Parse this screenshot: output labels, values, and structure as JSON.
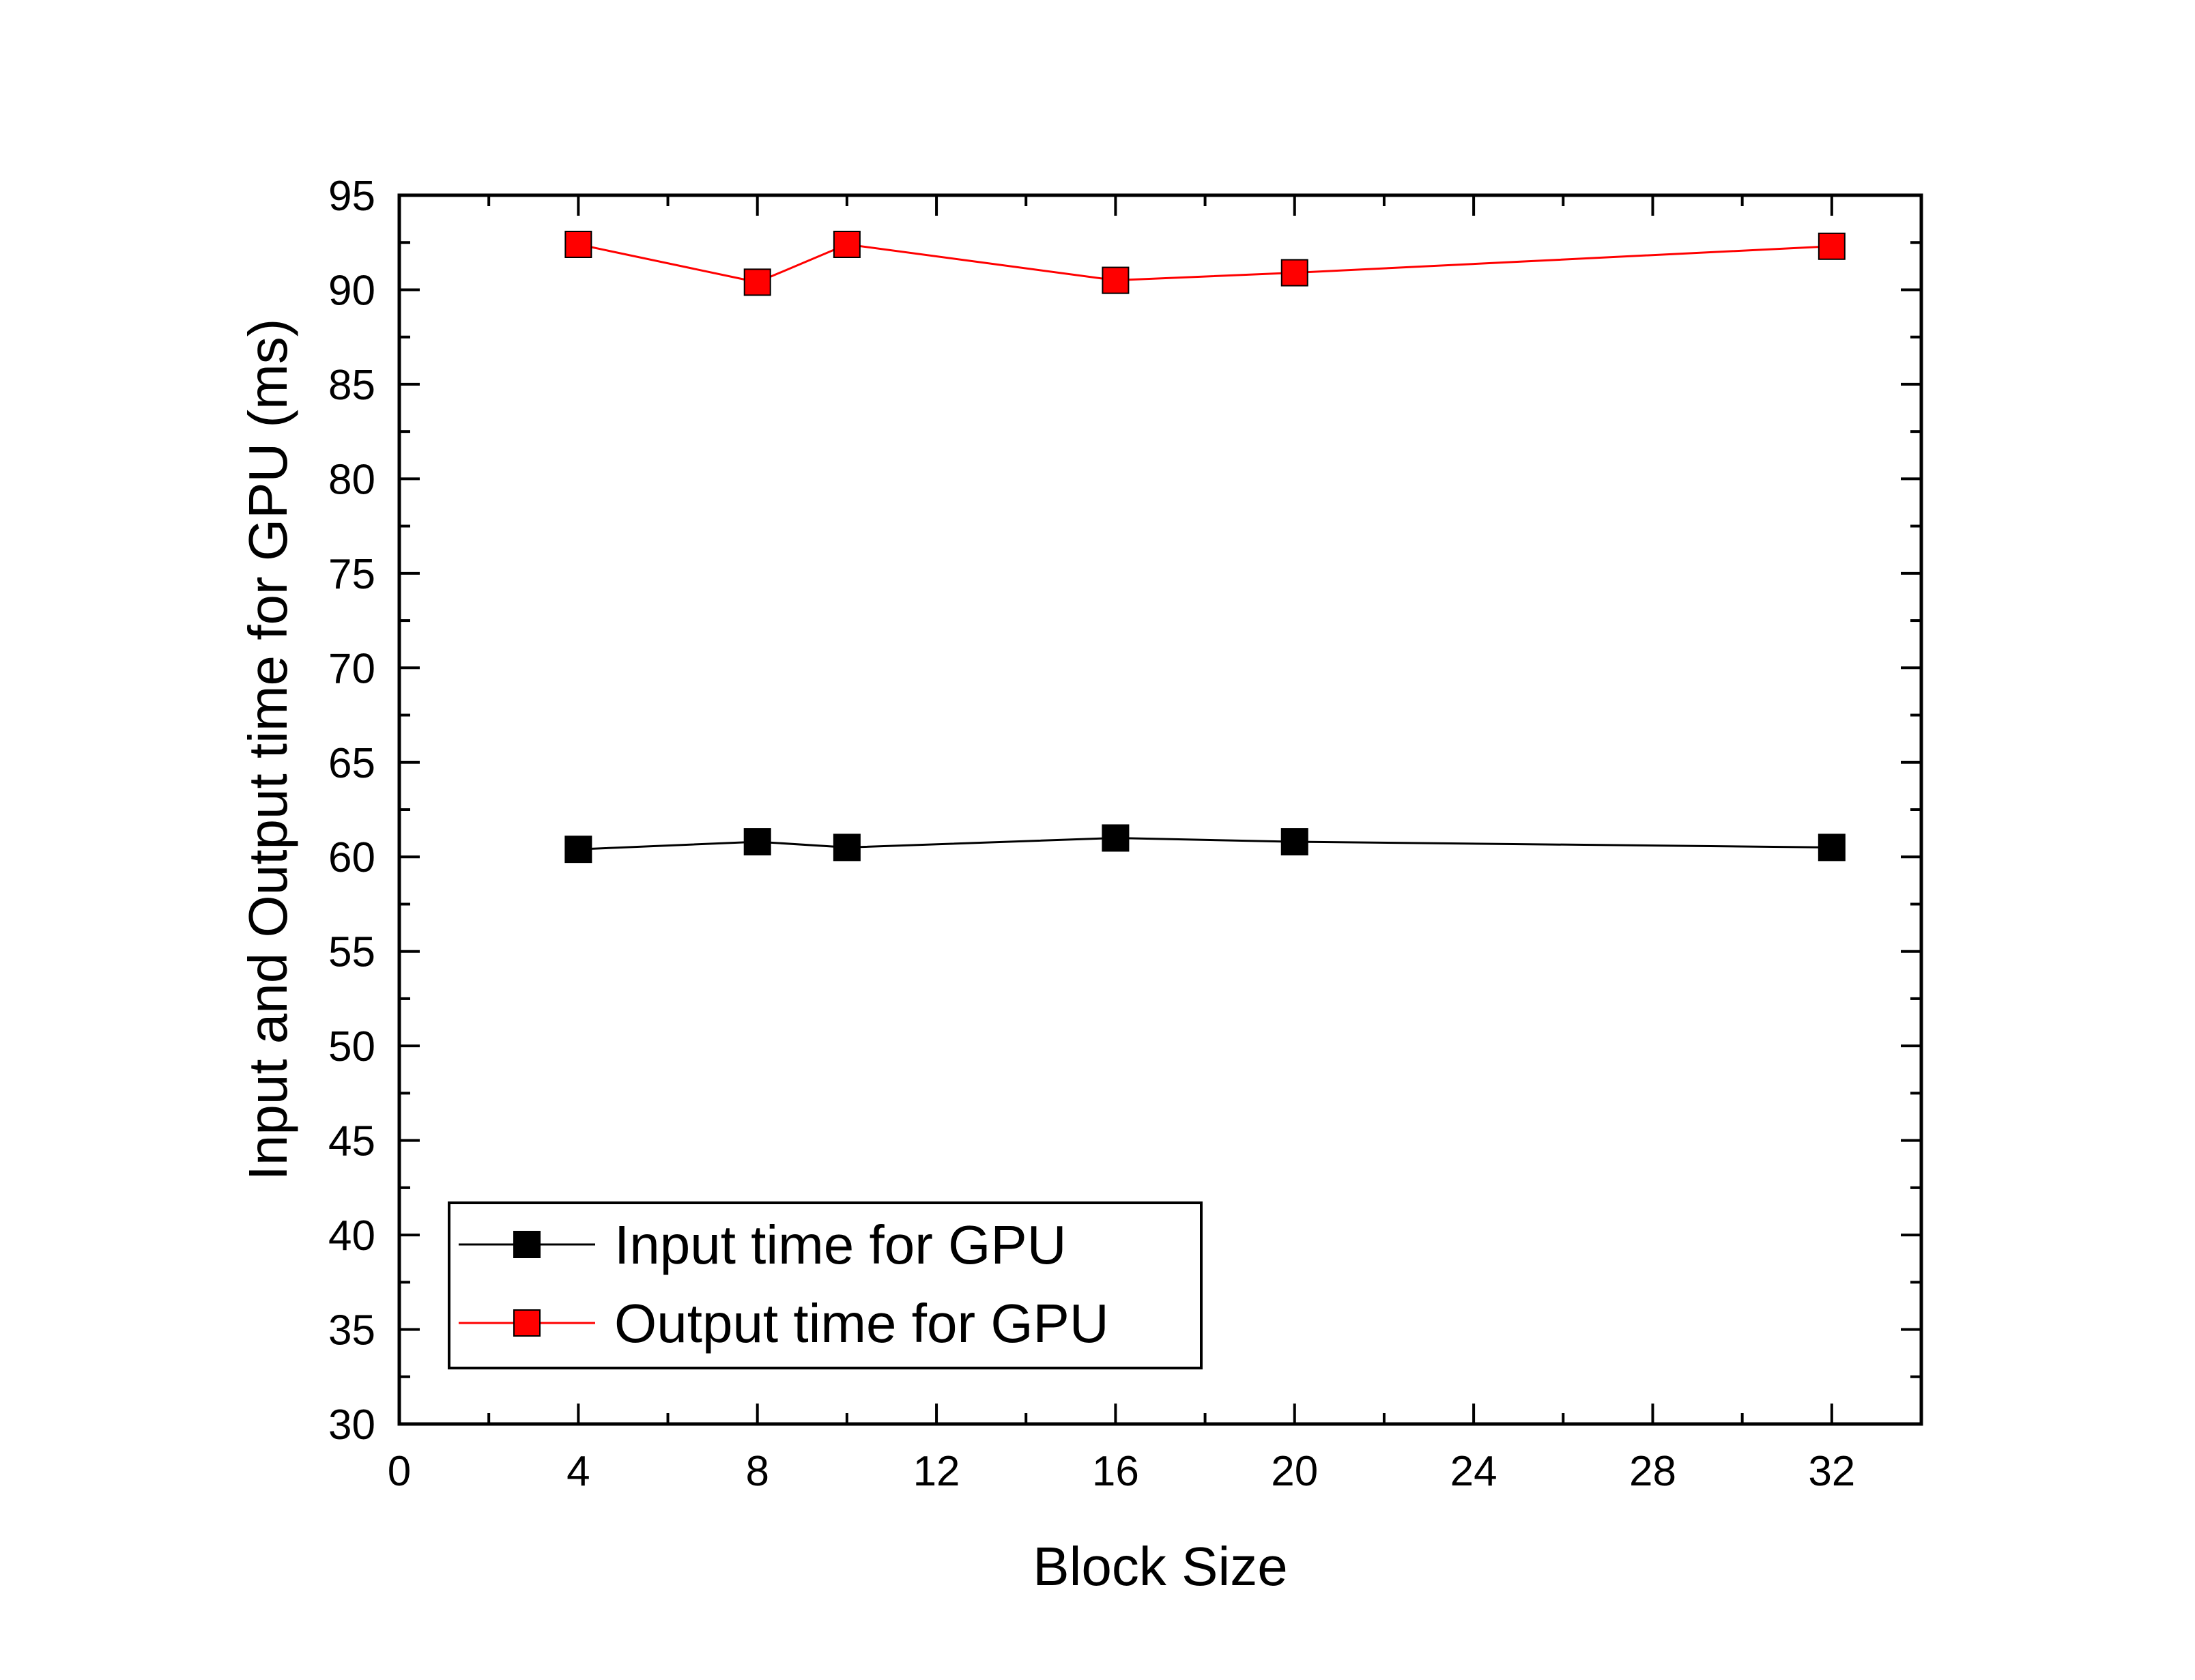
{
  "chart_data": {
    "type": "line",
    "xlabel": "Block Size",
    "ylabel": "Input and Output time for GPU (ms)",
    "xlim": [
      0,
      34
    ],
    "ylim": [
      30,
      95
    ],
    "xticks": [
      0,
      4,
      8,
      12,
      16,
      20,
      24,
      28,
      32
    ],
    "yticks": [
      30,
      35,
      40,
      45,
      50,
      55,
      60,
      65,
      70,
      75,
      80,
      85,
      90,
      95
    ],
    "grid": false,
    "legend_position": "bottom-left",
    "x": [
      4,
      8,
      10,
      16,
      20,
      32
    ],
    "series": [
      {
        "name": "Input time for GPU",
        "color": "#000000",
        "marker": "square",
        "values": [
          60.4,
          60.8,
          60.5,
          61.0,
          60.8,
          60.5
        ]
      },
      {
        "name": "Output time for GPU",
        "color": "#ff0000",
        "marker": "square",
        "values": [
          92.4,
          90.4,
          92.4,
          90.5,
          90.9,
          92.3
        ]
      }
    ]
  }
}
